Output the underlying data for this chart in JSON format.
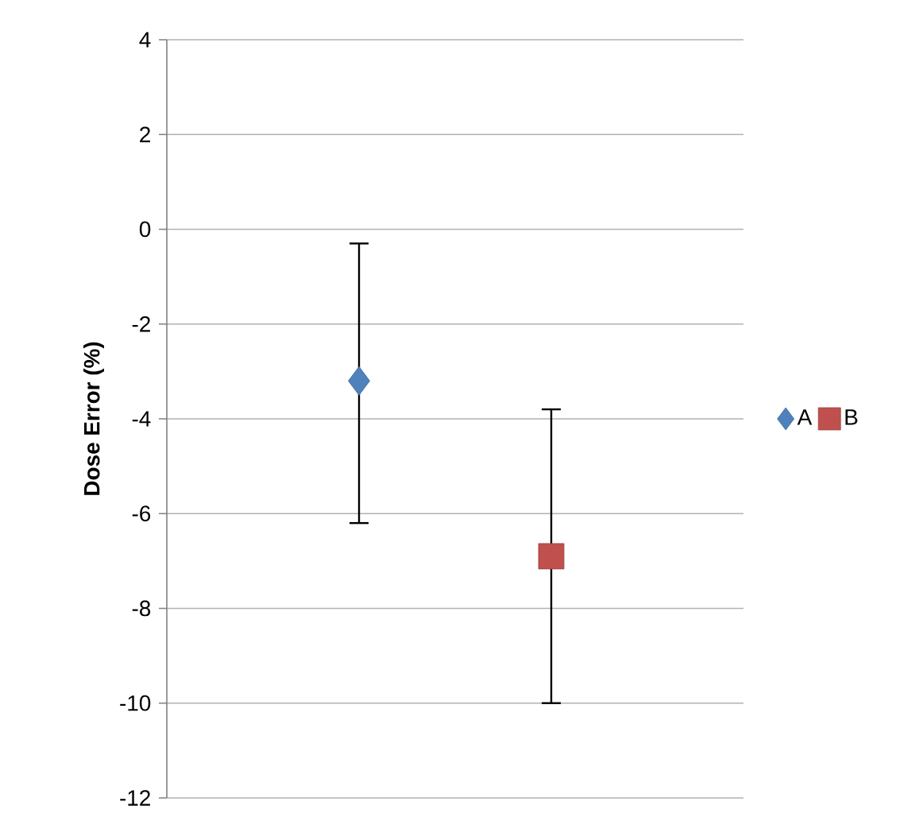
{
  "chart_data": {
    "type": "scatter",
    "ylabel": "Dose Error (%)",
    "categories": [
      null,
      null
    ],
    "series": [
      {
        "name": "A",
        "color": "#4f81bd",
        "marker": "diamond",
        "values": [
          -3.2,
          null
        ],
        "errors": [
          [
            -6.2,
            -0.3
          ],
          null
        ]
      },
      {
        "name": "B",
        "color": "#c0504d",
        "marker": "square",
        "values": [
          null,
          -6.9
        ],
        "errors": [
          null,
          [
            -10.0,
            -3.8
          ]
        ]
      }
    ],
    "ylim": [
      -12,
      4
    ],
    "yticks": [
      -12,
      -10,
      -8,
      -6,
      -4,
      -2,
      0,
      2,
      4
    ],
    "grid": "y",
    "legend": "right"
  }
}
